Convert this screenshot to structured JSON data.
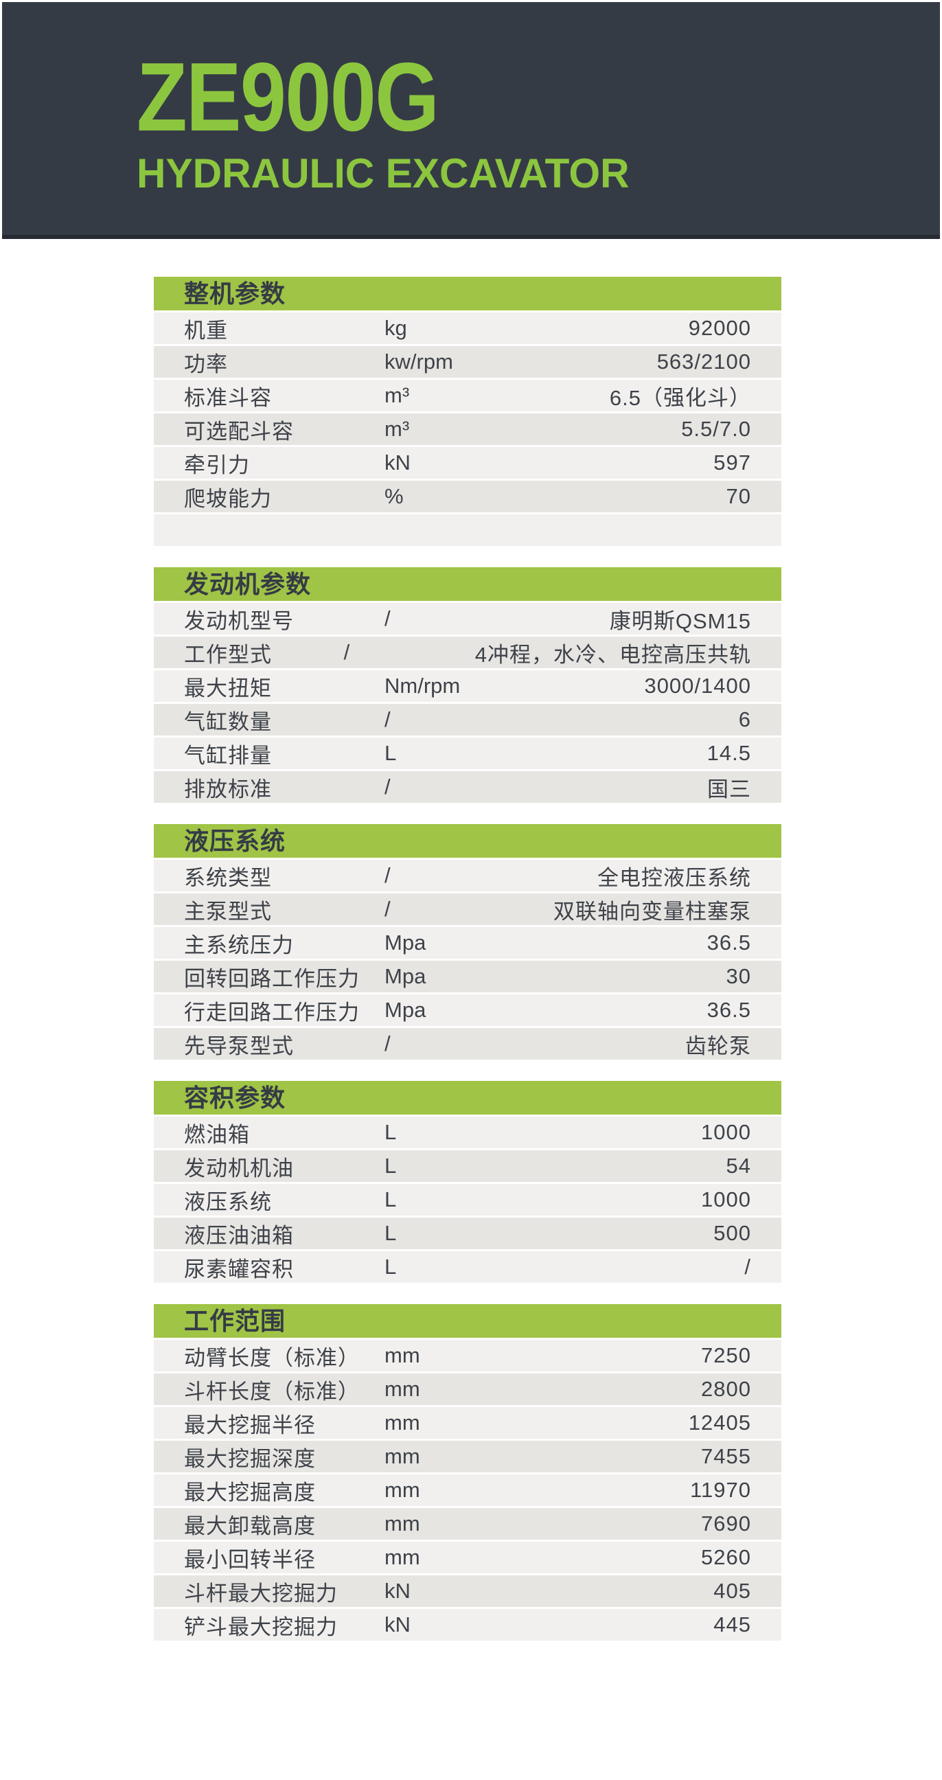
{
  "header": {
    "model": "ZE900G",
    "subtitle": "HYDRAULIC EXCAVATOR"
  },
  "colors": {
    "header_bg": "#353b45",
    "header_edge": "#252a33",
    "title_green": "#8cc63f",
    "bar_green": "#a0c446",
    "row_light": "#f2f0ee",
    "row_dark": "#e7e5e2",
    "text_dark": "#3e4249"
  },
  "tables": [
    {
      "title": "整机参数",
      "rows": [
        {
          "label": "机重",
          "unit": "kg",
          "value": "92000"
        },
        {
          "label": "功率",
          "unit": "kw/rpm",
          "value": "563/2100"
        },
        {
          "label": "标准斗容",
          "unit": "m³",
          "value": "6.5（强化斗）"
        },
        {
          "label": "可选配斗容",
          "unit": "m³",
          "value": "5.5/7.0"
        },
        {
          "label": "牵引力",
          "unit": "kN",
          "value": "597"
        },
        {
          "label": "爬坡能力",
          "unit": "%",
          "value": "70"
        },
        {
          "label": "",
          "unit": "",
          "value": ""
        }
      ]
    },
    {
      "title": "发动机参数",
      "rows": [
        {
          "label": "发动机型号",
          "unit": "/",
          "value": "康明斯QSM15"
        },
        {
          "label": "工作型式",
          "unit": "/",
          "value": "4冲程，水冷、电控高压共轨"
        },
        {
          "label": "最大扭矩",
          "unit": "Nm/rpm",
          "value": "3000/1400"
        },
        {
          "label": "气缸数量",
          "unit": "/",
          "value": "6"
        },
        {
          "label": "气缸排量",
          "unit": "L",
          "value": "14.5"
        },
        {
          "label": "排放标准",
          "unit": "/",
          "value": "国三"
        }
      ]
    },
    {
      "title": "液压系统",
      "rows": [
        {
          "label": "系统类型",
          "unit": "/",
          "value": "全电控液压系统"
        },
        {
          "label": "主泵型式",
          "unit": "/",
          "value": "双联轴向变量柱塞泵"
        },
        {
          "label": "主系统压力",
          "unit": "Mpa",
          "value": "36.5"
        },
        {
          "label": "回转回路工作压力",
          "unit": "Mpa",
          "value": "30"
        },
        {
          "label": "行走回路工作压力",
          "unit": "Mpa",
          "value": "36.5"
        },
        {
          "label": "先导泵型式",
          "unit": "/",
          "value": "齿轮泵"
        }
      ]
    },
    {
      "title": "容积参数",
      "rows": [
        {
          "label": "燃油箱",
          "unit": "L",
          "value": "1000"
        },
        {
          "label": "发动机机油",
          "unit": "L",
          "value": "54"
        },
        {
          "label": "液压系统",
          "unit": "L",
          "value": "1000"
        },
        {
          "label": "液压油油箱",
          "unit": "L",
          "value": "500"
        },
        {
          "label": "尿素罐容积",
          "unit": "L",
          "value": "/"
        }
      ]
    },
    {
      "title": "工作范围",
      "rows": [
        {
          "label": "动臂长度（标准）",
          "unit": "mm",
          "value": "7250"
        },
        {
          "label": "斗杆长度（标准）",
          "unit": "mm",
          "value": "2800"
        },
        {
          "label": "最大挖掘半径",
          "unit": "mm",
          "value": "12405"
        },
        {
          "label": "最大挖掘深度",
          "unit": "mm",
          "value": "7455"
        },
        {
          "label": "最大挖掘高度",
          "unit": "mm",
          "value": "11970"
        },
        {
          "label": "最大卸载高度",
          "unit": "mm",
          "value": "7690"
        },
        {
          "label": "最小回转半径",
          "unit": "mm",
          "value": "5260"
        },
        {
          "label": "斗杆最大挖掘力",
          "unit": "kN",
          "value": "405"
        },
        {
          "label": "铲斗最大挖掘力",
          "unit": "kN",
          "value": "445"
        }
      ]
    }
  ]
}
